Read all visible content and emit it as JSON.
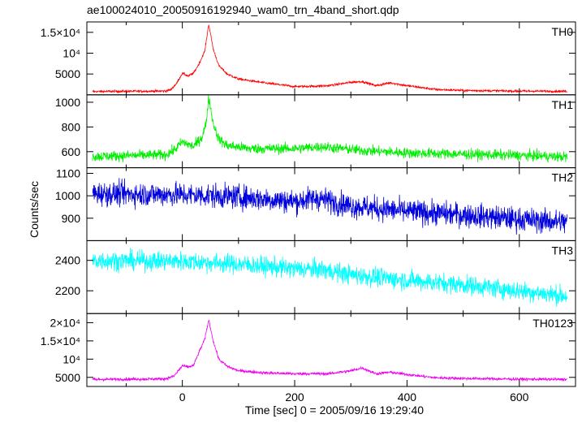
{
  "chart_data": {
    "type": "line",
    "title": "ae100024010_20050916192940_wam0_trn_4band_short.qdp",
    "xlabel": "Time [sec] 0 = 2005/09/16 19:29:40",
    "ylabel": "Counts/sec",
    "xlim": [
      -170,
      700
    ],
    "x_ticks": [
      "0",
      "200",
      "400",
      "600"
    ],
    "x_tick_values": [
      0,
      200,
      400,
      600
    ],
    "panels": [
      {
        "name": "TH0",
        "color": "#ff0000",
        "ylim": [
          0,
          17500
        ],
        "y_ticks": [
          {
            "value": 5000,
            "label": "5000"
          },
          {
            "value": 10000,
            "label": "10⁴"
          },
          {
            "value": 15000,
            "label": "1.5×10⁴"
          }
        ],
        "baseline": [
          [
            -170,
            800
          ],
          [
            -30,
            900
          ],
          [
            -20,
            1300
          ],
          [
            -10,
            2800
          ],
          [
            0,
            5200
          ],
          [
            10,
            4500
          ],
          [
            20,
            5200
          ],
          [
            30,
            7500
          ],
          [
            40,
            10500
          ],
          [
            47,
            17000
          ],
          [
            55,
            11000
          ],
          [
            65,
            7000
          ],
          [
            80,
            5000
          ],
          [
            100,
            3800
          ],
          [
            150,
            2800
          ],
          [
            200,
            2000
          ],
          [
            220,
            2000
          ],
          [
            260,
            2200
          ],
          [
            300,
            3000
          ],
          [
            320,
            3200
          ],
          [
            345,
            2200
          ],
          [
            370,
            2900
          ],
          [
            400,
            2200
          ],
          [
            450,
            1300
          ],
          [
            500,
            1050
          ],
          [
            600,
            900
          ],
          [
            700,
            850
          ]
        ],
        "noise": 200
      },
      {
        "name": "TH1",
        "color": "#00ee00",
        "ylim": [
          470,
          1060
        ],
        "y_ticks": [
          {
            "value": 600,
            "label": "600"
          },
          {
            "value": 800,
            "label": "800"
          },
          {
            "value": 1000,
            "label": "1000"
          }
        ],
        "baseline": [
          [
            -170,
            560
          ],
          [
            -30,
            575
          ],
          [
            -15,
            610
          ],
          [
            0,
            680
          ],
          [
            10,
            660
          ],
          [
            20,
            640
          ],
          [
            35,
            720
          ],
          [
            42,
            820
          ],
          [
            47,
            1040
          ],
          [
            55,
            830
          ],
          [
            65,
            700
          ],
          [
            80,
            650
          ],
          [
            120,
            625
          ],
          [
            200,
            625
          ],
          [
            250,
            640
          ],
          [
            320,
            610
          ],
          [
            400,
            590
          ],
          [
            500,
            580
          ],
          [
            600,
            570
          ],
          [
            700,
            555
          ]
        ],
        "noise": 30
      },
      {
        "name": "TH2",
        "color": "#0000dd",
        "ylim": [
          800,
          1125
        ],
        "y_ticks": [
          {
            "value": 900,
            "label": "900"
          },
          {
            "value": 1000,
            "label": "1000"
          },
          {
            "value": 1100,
            "label": "1100"
          }
        ],
        "baseline": [
          [
            -170,
            1010
          ],
          [
            0,
            1005
          ],
          [
            100,
            995
          ],
          [
            200,
            975
          ],
          [
            240,
            990
          ],
          [
            300,
            955
          ],
          [
            400,
            930
          ],
          [
            500,
            915
          ],
          [
            600,
            895
          ],
          [
            700,
            880
          ]
        ],
        "noise": 38
      },
      {
        "name": "TH3",
        "color": "#00ffff",
        "ylim": [
          2050,
          2530
        ],
        "y_ticks": [
          {
            "value": 2200,
            "label": "2200"
          },
          {
            "value": 2400,
            "label": "2400"
          }
        ],
        "baseline": [
          [
            -170,
            2400
          ],
          [
            0,
            2395
          ],
          [
            100,
            2375
          ],
          [
            200,
            2345
          ],
          [
            250,
            2340
          ],
          [
            300,
            2305
          ],
          [
            400,
            2270
          ],
          [
            500,
            2240
          ],
          [
            600,
            2200
          ],
          [
            700,
            2160
          ]
        ],
        "noise": 45
      },
      {
        "name": "TH0123",
        "color": "#ee00ee",
        "ylim": [
          2500,
          22500
        ],
        "y_ticks": [
          {
            "value": 5000,
            "label": "5000"
          },
          {
            "value": 10000,
            "label": "10⁴"
          },
          {
            "value": 15000,
            "label": "1.5×10⁴"
          },
          {
            "value": 20000,
            "label": "2×10⁴"
          }
        ],
        "baseline": [
          [
            -170,
            4400
          ],
          [
            -30,
            4600
          ],
          [
            -15,
            5300
          ],
          [
            0,
            8200
          ],
          [
            10,
            7800
          ],
          [
            20,
            8300
          ],
          [
            30,
            12000
          ],
          [
            40,
            15500
          ],
          [
            47,
            20800
          ],
          [
            55,
            15000
          ],
          [
            65,
            10000
          ],
          [
            80,
            8000
          ],
          [
            100,
            6800
          ],
          [
            150,
            6200
          ],
          [
            200,
            6000
          ],
          [
            260,
            6000
          ],
          [
            300,
            6800
          ],
          [
            320,
            7600
          ],
          [
            345,
            6000
          ],
          [
            370,
            6400
          ],
          [
            400,
            5800
          ],
          [
            450,
            4900
          ],
          [
            500,
            4700
          ],
          [
            600,
            4500
          ],
          [
            700,
            4450
          ]
        ],
        "noise": 280
      }
    ]
  }
}
